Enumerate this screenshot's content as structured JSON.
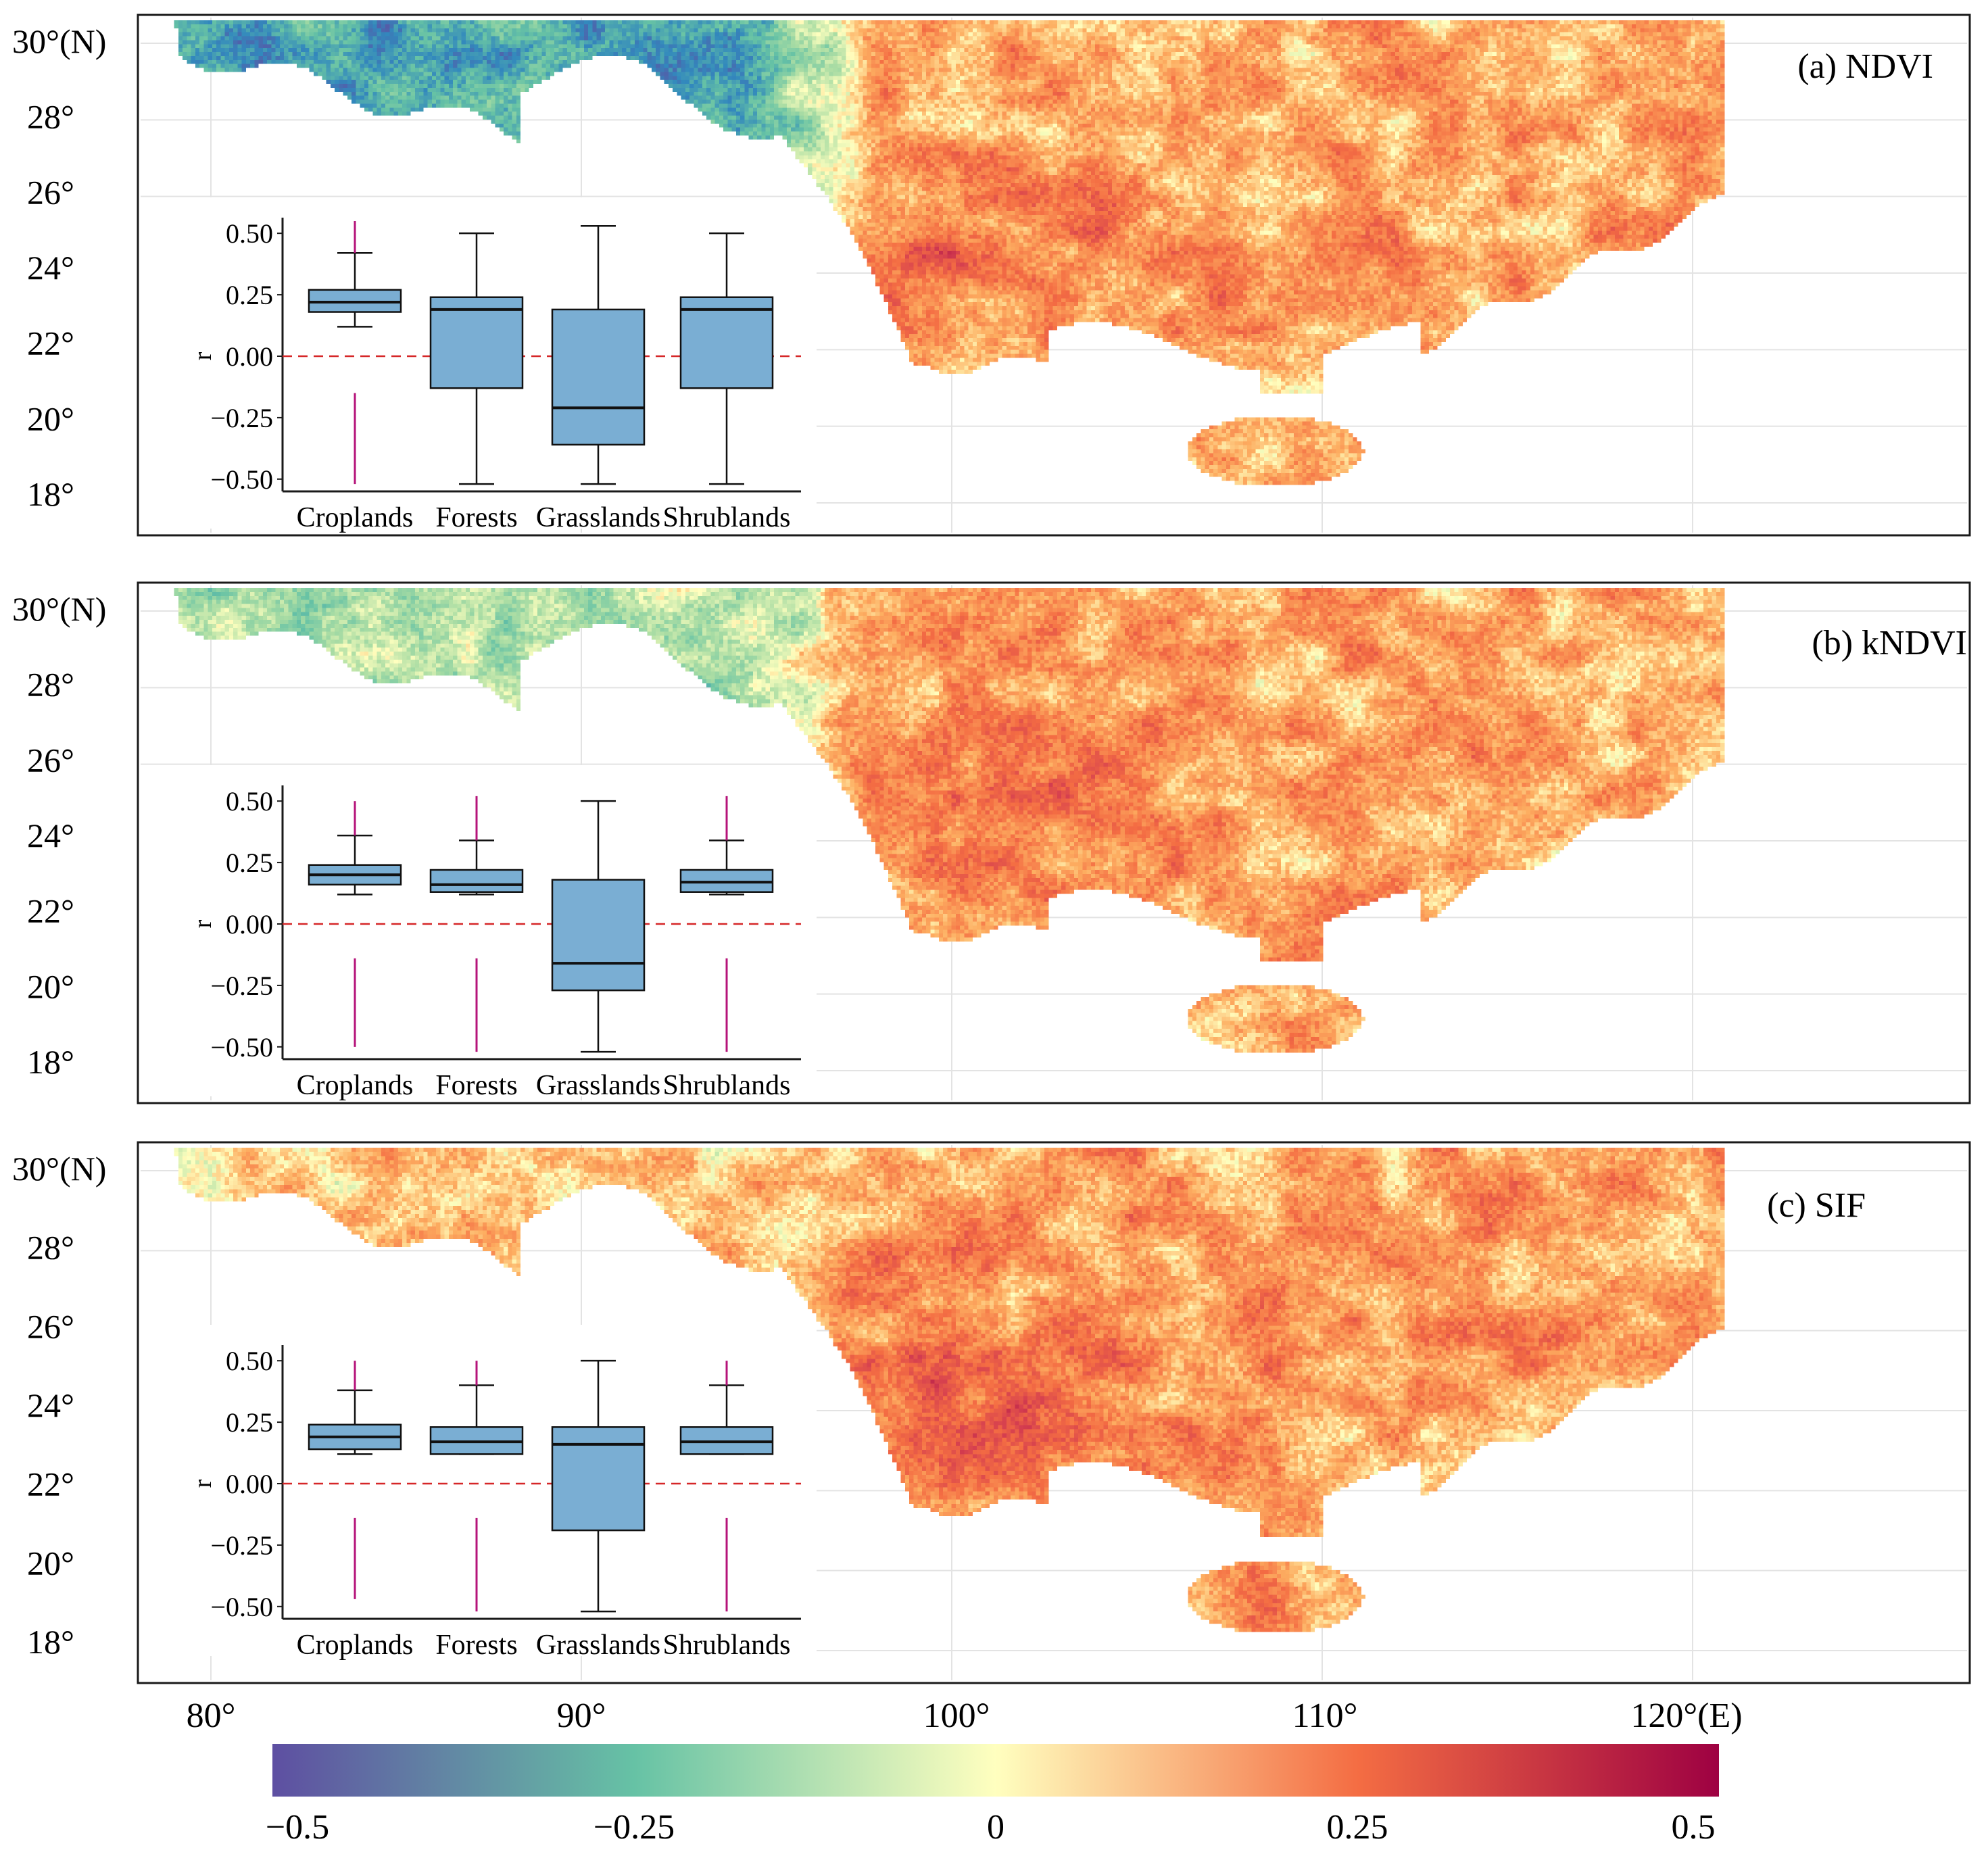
{
  "figure": {
    "panels": [
      {
        "label": "(a) NDVI",
        "lat_ticks": [
          "30°(N)",
          "28°",
          "26°",
          "24°",
          "22°",
          "20°",
          "18°"
        ],
        "map_pattern": {
          "west_mean": -0.3,
          "east_mean": 0.13,
          "hotspot_mean": 0.3
        },
        "inset": {
          "ylabel": "r",
          "yticks": [
            "0.50",
            "0.25",
            "0.00",
            "−0.25",
            "−0.50"
          ],
          "boxes": [
            {
              "category": "Croplands",
              "whisker_low": 0.12,
              "q1": 0.18,
              "median": 0.22,
              "q3": 0.27,
              "whisker_high": 0.42,
              "outlier_low": -0.15,
              "outlier_min": -0.52,
              "outlier_high_max": 0.55
            },
            {
              "category": "Forests",
              "whisker_low": -0.52,
              "q1": -0.13,
              "median": 0.19,
              "q3": 0.24,
              "whisker_high": 0.5
            },
            {
              "category": "Grasslands",
              "whisker_low": -0.52,
              "q1": -0.36,
              "median": -0.21,
              "q3": 0.19,
              "whisker_high": 0.53
            },
            {
              "category": "Shrublands",
              "whisker_low": -0.52,
              "q1": -0.13,
              "median": 0.19,
              "q3": 0.24,
              "whisker_high": 0.5
            }
          ]
        }
      },
      {
        "label": "(b) kNDVI",
        "lat_ticks": [
          "30°(N)",
          "28°",
          "26°",
          "24°",
          "22°",
          "20°",
          "18°"
        ],
        "map_pattern": {
          "west_mean": -0.12,
          "east_mean": 0.13,
          "hotspot_mean": 0.27
        },
        "inset": {
          "ylabel": "r",
          "yticks": [
            "0.50",
            "0.25",
            "0.00",
            "−0.25",
            "−0.50"
          ],
          "boxes": [
            {
              "category": "Croplands",
              "whisker_low": 0.12,
              "q1": 0.16,
              "median": 0.2,
              "q3": 0.24,
              "whisker_high": 0.36,
              "outlier_low": -0.14,
              "outlier_min": -0.5,
              "outlier_high_max": 0.5
            },
            {
              "category": "Forests",
              "whisker_low": 0.12,
              "q1": 0.13,
              "median": 0.16,
              "q3": 0.22,
              "whisker_high": 0.34,
              "outlier_low": -0.14,
              "outlier_min": -0.52,
              "outlier_high_max": 0.52
            },
            {
              "category": "Grasslands",
              "whisker_low": -0.52,
              "q1": -0.27,
              "median": -0.16,
              "q3": 0.18,
              "whisker_high": 0.5
            },
            {
              "category": "Shrublands",
              "whisker_low": 0.12,
              "q1": 0.13,
              "median": 0.17,
              "q3": 0.22,
              "whisker_high": 0.34,
              "outlier_low": -0.14,
              "outlier_min": -0.52,
              "outlier_high_max": 0.52
            }
          ]
        }
      },
      {
        "label": "(c) SIF",
        "lat_ticks": [
          "30°(N)",
          "28°",
          "26°",
          "24°",
          "22°",
          "20°",
          "18°"
        ],
        "map_pattern": {
          "west_mean": 0.08,
          "east_mean": 0.15,
          "hotspot_mean": 0.3
        },
        "inset": {
          "ylabel": "r",
          "yticks": [
            "0.50",
            "0.25",
            "0.00",
            "−0.25",
            "−0.50"
          ],
          "boxes": [
            {
              "category": "Croplands",
              "whisker_low": 0.12,
              "q1": 0.14,
              "median": 0.19,
              "q3": 0.24,
              "whisker_high": 0.38,
              "outlier_low": -0.14,
              "outlier_min": -0.47,
              "outlier_high_max": 0.5
            },
            {
              "category": "Forests",
              "whisker_low": 0.12,
              "q1": 0.12,
              "median": 0.17,
              "q3": 0.23,
              "whisker_high": 0.4,
              "outlier_low": -0.14,
              "outlier_min": -0.52,
              "outlier_high_max": 0.5
            },
            {
              "category": "Grasslands",
              "whisker_low": -0.52,
              "q1": -0.19,
              "median": 0.16,
              "q3": 0.23,
              "whisker_high": 0.5
            },
            {
              "category": "Shrublands",
              "whisker_low": 0.12,
              "q1": 0.12,
              "median": 0.17,
              "q3": 0.23,
              "whisker_high": 0.4,
              "outlier_low": -0.14,
              "outlier_min": -0.52,
              "outlier_high_max": 0.5
            }
          ]
        }
      }
    ],
    "lon_ticks": [
      "80°",
      "90°",
      "100°",
      "110°",
      "120°(E)"
    ],
    "colorbar": {
      "ticks": [
        "−0.5",
        "−0.25",
        "0",
        "0.25",
        "0.5"
      ],
      "tick_values": [
        -0.5,
        -0.25,
        0,
        0.25,
        0.5
      ],
      "range": [
        -0.5,
        0.5
      ]
    },
    "colors": {
      "box_fill": "#7aaed3",
      "zero_line": "#d62728",
      "outlier": "#b5137a",
      "frame": "#1a1a1a",
      "grid": "#e3e3e3"
    }
  }
}
